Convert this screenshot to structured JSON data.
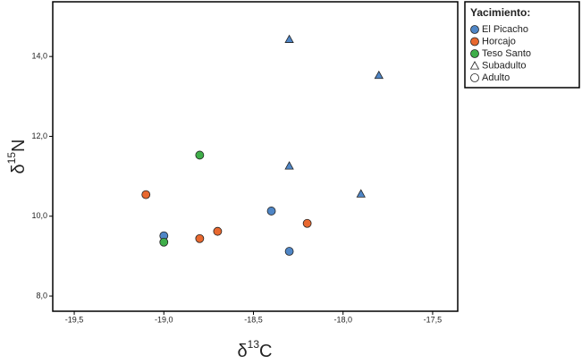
{
  "chart_data": {
    "type": "scatter",
    "xlabel": {
      "base": "δ",
      "sup": "13",
      "tail": "C"
    },
    "ylabel": {
      "base": "δ",
      "sup": "15",
      "tail": "N"
    },
    "xlim": [
      -19.62,
      -17.36
    ],
    "ylim": [
      7.62,
      15.37
    ],
    "xticks": [
      {
        "value": -19.5,
        "label": "-19,5"
      },
      {
        "value": -19.0,
        "label": "-19,0"
      },
      {
        "value": -18.5,
        "label": "-18,5"
      },
      {
        "value": -18.0,
        "label": "-18,0"
      },
      {
        "value": -17.5,
        "label": "-17,5"
      }
    ],
    "yticks": [
      {
        "value": 8.0,
        "label": "8,0"
      },
      {
        "value": 10.0,
        "label": "10,0"
      },
      {
        "value": 12.0,
        "label": "12,0"
      },
      {
        "value": 14.0,
        "label": "14,0"
      }
    ],
    "legend_title": "Yacimiento:",
    "series": [
      {
        "name": "El Picacho",
        "color": "#4f86c6",
        "x": [
          -19.0,
          -18.4,
          -18.3,
          -18.3,
          -17.8,
          -18.3,
          -17.9
        ],
        "values": [
          9.51,
          10.13,
          9.12,
          14.43,
          13.53,
          11.26,
          10.56
        ],
        "markers": [
          "circle",
          "circle",
          "circle",
          "triangle",
          "triangle",
          "triangle",
          "triangle"
        ]
      },
      {
        "name": "Horcajo",
        "color": "#e8682f",
        "x": [
          -19.1,
          -18.8,
          -18.7,
          -18.2
        ],
        "values": [
          10.54,
          9.44,
          9.62,
          9.82
        ],
        "markers": [
          "circle",
          "circle",
          "circle",
          "circle"
        ]
      },
      {
        "name": "Teso Santo",
        "color": "#3fae49",
        "x": [
          -18.8,
          -19.0
        ],
        "values": [
          11.53,
          9.35
        ],
        "markers": [
          "circle",
          "circle"
        ]
      }
    ],
    "shape_legend": [
      {
        "name": "Subadulto",
        "shape": "triangle"
      },
      {
        "name": "Adulto",
        "shape": "circle"
      }
    ]
  }
}
